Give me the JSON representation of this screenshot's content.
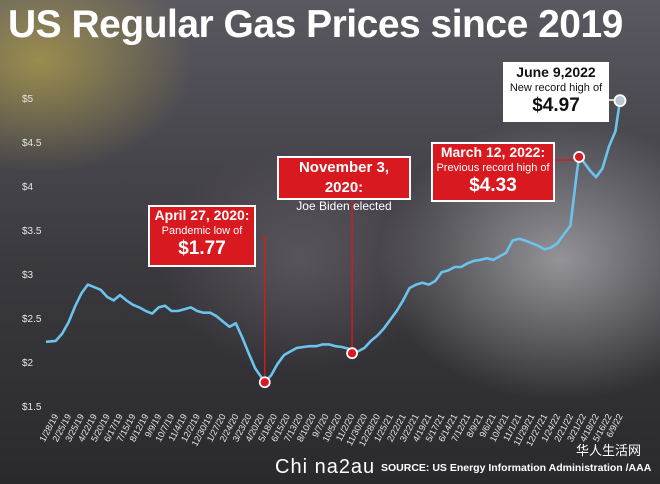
{
  "title": "US Regular Gas Prices since 2019",
  "source": "SOURCE: US Energy Information Administration /AAA",
  "watermark_left": "Chi na2au",
  "watermark_right": "华人生活网",
  "colors": {
    "line": "#6cc3ee",
    "callout": "#d8191f",
    "marker": "#d8191f"
  },
  "chart_data": {
    "type": "line",
    "title": "US Regular Gas Prices since 2019",
    "ylim": [
      1.5,
      5.0
    ],
    "y_ticks": [
      "$1.5",
      "$2",
      "$2.5",
      "$3",
      "$3.5",
      "$4",
      "$4.5",
      "$5"
    ],
    "y_tick_values": [
      1.5,
      2,
      2.5,
      3,
      3.5,
      4,
      4.5,
      5
    ],
    "x_tick_labels": [
      "1/28/19",
      "2/25/19",
      "3/25/19",
      "4/22/19",
      "5/20/19",
      "6/17/19",
      "7/15/19",
      "8/12/19",
      "9/9/19",
      "10/7/19",
      "11/4/19",
      "12/2/19",
      "12/30/19",
      "1/27/20",
      "2/24/20",
      "3/23/20",
      "4/20/20",
      "5/18/20",
      "6/15/20",
      "7/13/20",
      "8/10/20",
      "9/7/20",
      "10/5/20",
      "11/2/20",
      "11/30/20",
      "12/28/20",
      "1/25/21",
      "2/22/21",
      "3/22/21",
      "4/19/21",
      "5/17/21",
      "6/14/21",
      "7/12/21",
      "8/9/21",
      "9/6/21",
      "10/4/21",
      "11/1/21",
      "11/29/21",
      "12/27/21",
      "1/24/22",
      "2/21/22",
      "3/21/22",
      "4/18/22",
      "5/16/22",
      "6/9/22"
    ],
    "series": [
      {
        "x": [
          "1/7/19",
          "1/28/19",
          "2/11/19",
          "2/25/19",
          "3/11/19",
          "3/25/19",
          "4/8/19",
          "4/22/19",
          "5/6/19",
          "5/20/19",
          "6/3/19",
          "6/17/19",
          "7/1/19",
          "7/15/19",
          "7/29/19",
          "8/12/19",
          "8/26/19",
          "9/9/19",
          "9/23/19",
          "10/7/19",
          "10/21/19",
          "11/4/19",
          "11/18/19",
          "12/2/19",
          "12/16/19",
          "12/30/19",
          "1/13/20",
          "1/27/20",
          "2/10/20",
          "2/24/20",
          "3/9/20",
          "3/23/20",
          "4/6/20",
          "4/27/20",
          "5/11/20",
          "5/25/20",
          "6/8/20",
          "6/22/20",
          "7/6/20",
          "7/20/20",
          "8/3/20",
          "8/17/20",
          "8/31/20",
          "9/14/20",
          "9/28/20",
          "10/12/20",
          "10/26/20",
          "11/3/20",
          "11/16/20",
          "11/30/20",
          "12/14/20",
          "12/28/20",
          "1/11/21",
          "1/25/21",
          "2/8/21",
          "2/22/21",
          "3/8/21",
          "3/22/21",
          "4/5/21",
          "4/19/21",
          "5/3/21",
          "5/17/21",
          "5/31/21",
          "6/14/21",
          "6/28/21",
          "7/12/21",
          "7/26/21",
          "8/9/21",
          "8/23/21",
          "9/6/21",
          "9/20/21",
          "10/4/21",
          "10/18/21",
          "11/1/21",
          "11/15/21",
          "11/29/21",
          "12/13/21",
          "12/27/21",
          "1/10/22",
          "1/24/22",
          "2/7/22",
          "2/21/22",
          "3/7/22",
          "3/12/22",
          "3/21/22",
          "4/4/22",
          "4/18/22",
          "5/2/22",
          "5/16/22",
          "5/30/22",
          "6/9/22"
        ],
        "values": [
          2.23,
          2.24,
          2.32,
          2.45,
          2.63,
          2.78,
          2.88,
          2.85,
          2.82,
          2.74,
          2.7,
          2.76,
          2.7,
          2.65,
          2.62,
          2.58,
          2.55,
          2.62,
          2.64,
          2.58,
          2.58,
          2.6,
          2.62,
          2.58,
          2.56,
          2.56,
          2.52,
          2.46,
          2.4,
          2.44,
          2.28,
          2.1,
          1.93,
          1.77,
          1.85,
          1.98,
          2.08,
          2.12,
          2.16,
          2.17,
          2.18,
          2.18,
          2.2,
          2.2,
          2.18,
          2.17,
          2.15,
          2.1,
          2.12,
          2.16,
          2.24,
          2.3,
          2.38,
          2.48,
          2.58,
          2.7,
          2.84,
          2.88,
          2.9,
          2.88,
          2.92,
          3.02,
          3.04,
          3.08,
          3.08,
          3.12,
          3.15,
          3.16,
          3.18,
          3.16,
          3.2,
          3.24,
          3.38,
          3.4,
          3.38,
          3.35,
          3.32,
          3.28,
          3.3,
          3.35,
          3.45,
          3.55,
          4.15,
          4.33,
          4.28,
          4.18,
          4.1,
          4.2,
          4.45,
          4.62,
          4.97
        ]
      }
    ],
    "annotations": [
      {
        "date": "4/27/20",
        "heading": "April 27, 2020:",
        "text": "Pandemic low of",
        "value": "$1.77"
      },
      {
        "date": "11/3/20",
        "heading": "November 3, 2020:",
        "text": "Joe Biden elected",
        "value": ""
      },
      {
        "date": "3/12/22",
        "heading": "March 12, 2022:",
        "text": "Previous record high of",
        "value": "$4.33"
      },
      {
        "date": "6/9/22",
        "heading": "June 9,2022",
        "text": "New record high of",
        "value": "$4.97"
      }
    ]
  }
}
